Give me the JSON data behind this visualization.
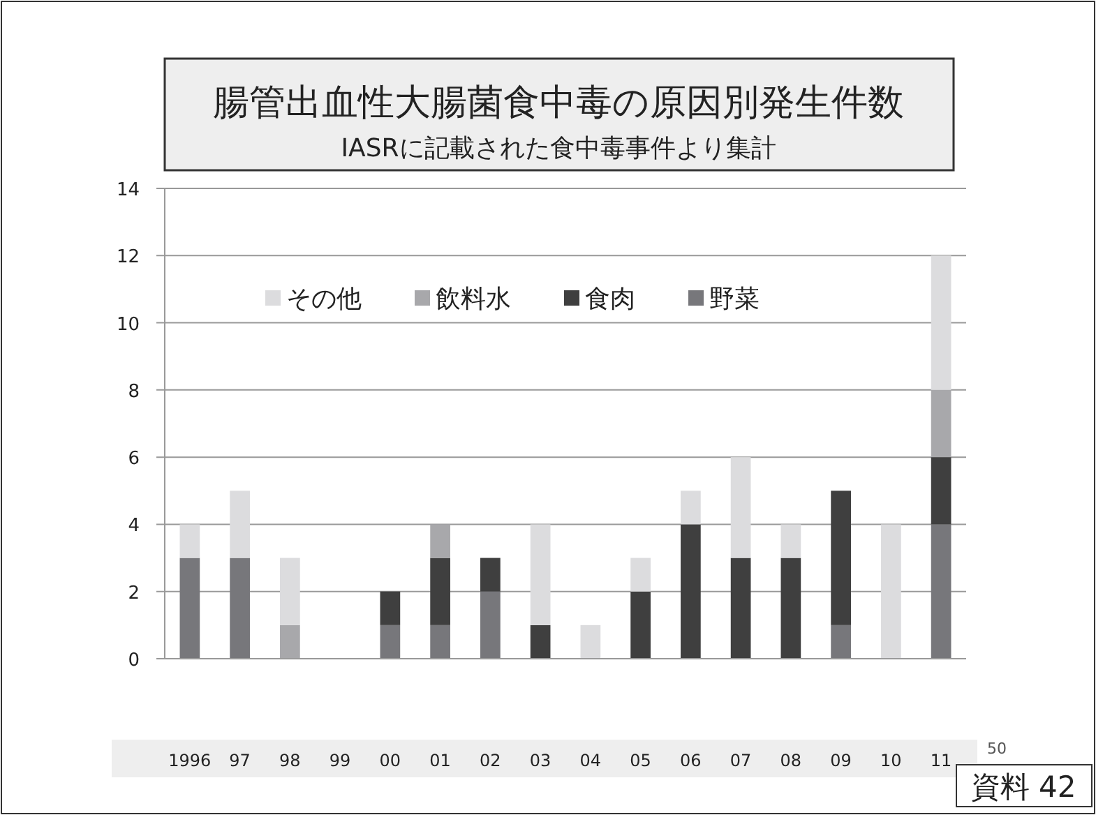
{
  "chart_data": {
    "type": "bar",
    "stacked": true,
    "title": "腸管出血性大腸菌食中毒の原因別発生件数",
    "subtitle": "IASRに記載された食中毒事件より集計",
    "categories": [
      "1996",
      "97",
      "98",
      "99",
      "00",
      "01",
      "02",
      "03",
      "04",
      "05",
      "06",
      "07",
      "08",
      "09",
      "10",
      "11"
    ],
    "series": [
      {
        "name": "野菜",
        "color": "#77777b",
        "values": [
          3,
          3,
          0,
          0,
          1,
          1,
          2,
          0,
          0,
          0,
          0,
          0,
          0,
          1,
          0,
          4
        ]
      },
      {
        "name": "食肉",
        "color": "#3f3f3f",
        "values": [
          0,
          0,
          0,
          0,
          1,
          2,
          1,
          1,
          0,
          2,
          4,
          3,
          3,
          4,
          0,
          2
        ]
      },
      {
        "name": "飲料水",
        "color": "#a8a8ab",
        "values": [
          0,
          0,
          1,
          0,
          0,
          1,
          0,
          0,
          0,
          0,
          0,
          0,
          0,
          0,
          0,
          2
        ]
      },
      {
        "name": "その他",
        "color": "#dcdcde",
        "values": [
          1,
          2,
          2,
          0,
          0,
          0,
          0,
          3,
          1,
          1,
          1,
          3,
          1,
          0,
          4,
          4
        ]
      }
    ],
    "ylim": [
      0,
      14
    ],
    "yticks": [
      0,
      2,
      4,
      6,
      8,
      10,
      12,
      14
    ],
    "grid": "y",
    "legend": "top left",
    "annotations": [
      "資料 42",
      "50"
    ]
  }
}
